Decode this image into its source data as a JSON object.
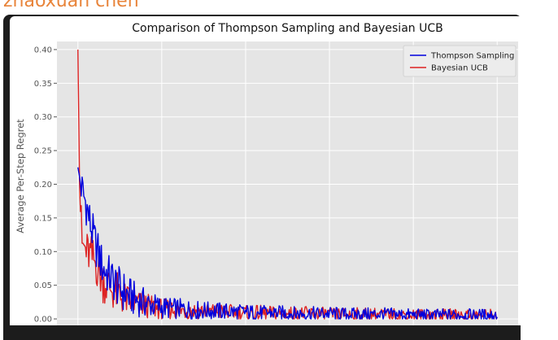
{
  "banner": {
    "text": "zhaoxuan chen",
    "color": "#e8843a"
  },
  "chart_data": {
    "type": "line",
    "title": "Comparison of Thompson Sampling and Bayesian UCB",
    "xlabel": "",
    "ylabel": "Average Per-Step Regret",
    "xlim": [
      -25,
      525
    ],
    "ylim": [
      -0.012,
      0.412
    ],
    "xticks": [
      0,
      100,
      200,
      300,
      400,
      500
    ],
    "yticks": [
      0.0,
      0.05,
      0.1,
      0.15,
      0.2,
      0.25,
      0.3,
      0.35,
      0.4
    ],
    "ytick_labels": [
      "0.00",
      "0.05",
      "0.10",
      "0.15",
      "0.20",
      "0.25",
      "0.30",
      "0.35",
      "0.40"
    ],
    "grid": true,
    "legend_position": "top-right",
    "background": "#e5e5e5",
    "series": [
      {
        "name": "Thompson Sampling",
        "color": "#0000dd",
        "x": [
          0,
          5,
          10,
          15,
          20,
          25,
          30,
          40,
          50,
          60,
          70,
          80,
          90,
          100,
          120,
          140,
          160,
          180,
          200,
          220,
          240,
          260,
          280,
          300,
          320,
          340,
          360,
          380,
          400,
          420,
          440,
          460,
          480,
          500
        ],
        "y": [
          0.225,
          0.19,
          0.17,
          0.14,
          0.115,
          0.095,
          0.075,
          0.06,
          0.045,
          0.035,
          0.028,
          0.024,
          0.02,
          0.017,
          0.015,
          0.013,
          0.012,
          0.011,
          0.01,
          0.009,
          0.009,
          0.008,
          0.008,
          0.008,
          0.007,
          0.007,
          0.007,
          0.007,
          0.006,
          0.006,
          0.006,
          0.006,
          0.006,
          0.006
        ]
      },
      {
        "name": "Bayesian UCB",
        "color": "#dd2222",
        "x": [
          0,
          2,
          5,
          10,
          15,
          20,
          25,
          30,
          40,
          50,
          60,
          70,
          80,
          90,
          100,
          120,
          140,
          160,
          180,
          200,
          220,
          240,
          260,
          280,
          300,
          320,
          340,
          360,
          380,
          400,
          420,
          440,
          460,
          480,
          500
        ],
        "y": [
          0.4,
          0.2,
          0.11,
          0.1,
          0.095,
          0.085,
          0.07,
          0.055,
          0.045,
          0.035,
          0.027,
          0.022,
          0.02,
          0.017,
          0.015,
          0.013,
          0.012,
          0.011,
          0.01,
          0.009,
          0.009,
          0.008,
          0.008,
          0.008,
          0.007,
          0.007,
          0.007,
          0.007,
          0.006,
          0.006,
          0.006,
          0.006,
          0.006,
          0.006,
          0.006
        ]
      }
    ]
  }
}
